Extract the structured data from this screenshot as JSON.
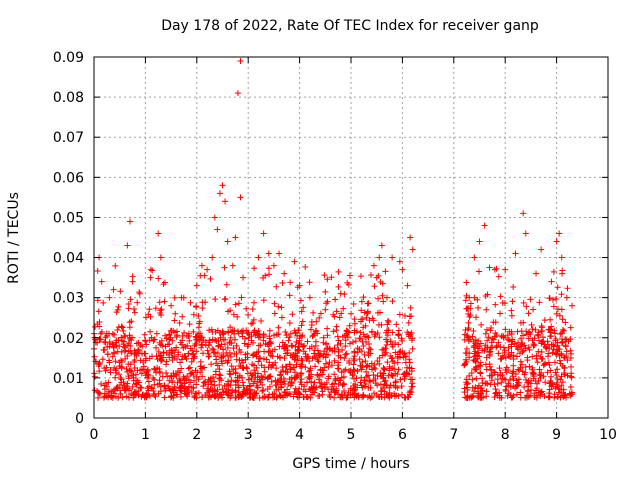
{
  "chart_data": {
    "type": "scatter",
    "title": "Day 178 of 2022, Rate Of TEC Index for receiver ganp",
    "xlabel": "GPS time / hours",
    "ylabel": "ROTI / TECUs",
    "xlim": [
      0,
      10
    ],
    "ylim": [
      0,
      0.09
    ],
    "x_ticks": [
      "0",
      "1",
      "2",
      "3",
      "4",
      "5",
      "6",
      "7",
      "8",
      "9",
      "10"
    ],
    "y_ticks": [
      "0",
      "0.01",
      "0.02",
      "0.03",
      "0.04",
      "0.05",
      "0.06",
      "0.07",
      "0.08",
      "0.09"
    ],
    "grid": true,
    "marker": "+",
    "marker_color": "#ff0000",
    "series": [
      {
        "name": "ROTI",
        "segments": [
          [
            0.0,
            6.2
          ],
          [
            7.2,
            9.3
          ]
        ],
        "typical_range": [
          0.005,
          0.03
        ],
        "points": [
          [
            0.1,
            0.04
          ],
          [
            0.15,
            0.034
          ],
          [
            0.3,
            0.03
          ],
          [
            0.7,
            0.049
          ],
          [
            0.65,
            0.043
          ],
          [
            0.75,
            0.034
          ],
          [
            1.1,
            0.035
          ],
          [
            1.25,
            0.046
          ],
          [
            1.3,
            0.04
          ],
          [
            1.5,
            0.028
          ],
          [
            1.7,
            0.03
          ],
          [
            2.0,
            0.033
          ],
          [
            2.1,
            0.038
          ],
          [
            2.2,
            0.037
          ],
          [
            2.3,
            0.04
          ],
          [
            2.35,
            0.05
          ],
          [
            2.4,
            0.047
          ],
          [
            2.45,
            0.056
          ],
          [
            2.5,
            0.058
          ],
          [
            2.55,
            0.054
          ],
          [
            2.6,
            0.044
          ],
          [
            2.7,
            0.038
          ],
          [
            2.75,
            0.045
          ],
          [
            2.8,
            0.081
          ],
          [
            2.85,
            0.089
          ],
          [
            2.85,
            0.055
          ],
          [
            2.9,
            0.035
          ],
          [
            3.2,
            0.04
          ],
          [
            3.3,
            0.046
          ],
          [
            3.4,
            0.041
          ],
          [
            3.5,
            0.038
          ],
          [
            3.6,
            0.041
          ],
          [
            3.7,
            0.036
          ],
          [
            3.9,
            0.039
          ],
          [
            4.0,
            0.033
          ],
          [
            4.2,
            0.03
          ],
          [
            4.5,
            0.027
          ],
          [
            4.8,
            0.031
          ],
          [
            5.0,
            0.026
          ],
          [
            5.3,
            0.025
          ],
          [
            5.5,
            0.035
          ],
          [
            5.55,
            0.04
          ],
          [
            5.6,
            0.043
          ],
          [
            5.7,
            0.03
          ],
          [
            5.8,
            0.04
          ],
          [
            5.95,
            0.039
          ],
          [
            6.0,
            0.037
          ],
          [
            6.1,
            0.033
          ],
          [
            6.15,
            0.045
          ],
          [
            6.2,
            0.042
          ],
          [
            7.3,
            0.03
          ],
          [
            7.4,
            0.04
          ],
          [
            7.5,
            0.044
          ],
          [
            7.6,
            0.048
          ],
          [
            7.8,
            0.037
          ],
          [
            8.0,
            0.037
          ],
          [
            8.2,
            0.041
          ],
          [
            8.35,
            0.051
          ],
          [
            8.4,
            0.046
          ],
          [
            8.6,
            0.036
          ],
          [
            8.7,
            0.042
          ],
          [
            8.9,
            0.034
          ],
          [
            9.0,
            0.044
          ],
          [
            9.05,
            0.046
          ],
          [
            9.1,
            0.04
          ],
          [
            9.2,
            0.03
          ],
          [
            9.3,
            0.028
          ]
        ]
      }
    ]
  }
}
